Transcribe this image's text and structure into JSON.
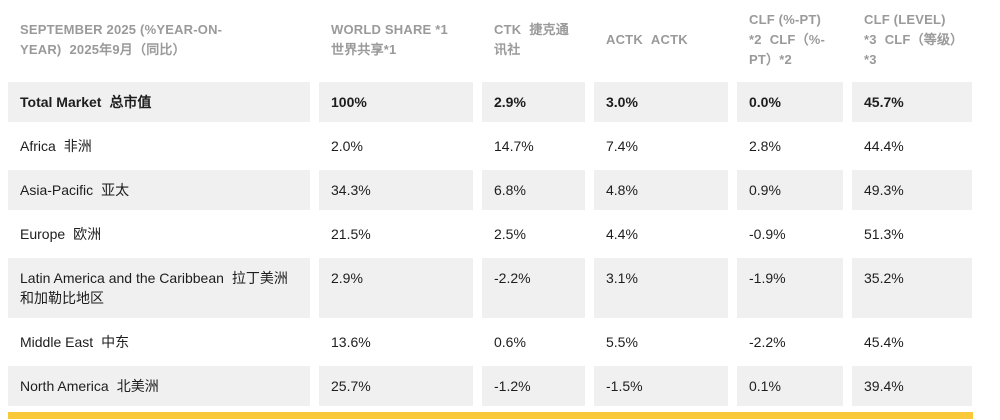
{
  "theme": {
    "accent_bar_color": "#F9C93A",
    "shaded_row_bg": "#F0F0F0",
    "header_text_color": "#9A9A9A",
    "body_text_color": "#1D1D1D"
  },
  "table": {
    "columns": [
      {
        "en": "SEPTEMBER 2025 (%YEAR-ON-YEAR)",
        "zh": "2025年9月（同比）"
      },
      {
        "en": "WORLD SHARE *1",
        "zh": "世界共享*1"
      },
      {
        "en": "CTK",
        "zh": "捷克通讯社"
      },
      {
        "en": "ACTK",
        "zh": "ACTK"
      },
      {
        "en": "CLF (%-PT) *2",
        "zh": "CLF（%-PT）*2"
      },
      {
        "en": "CLF (LEVEL) *3",
        "zh": "CLF（等级）*3"
      }
    ],
    "rows": [
      {
        "region_en": "Total Market",
        "region_zh": "总市值",
        "values": [
          "100%",
          "2.9%",
          "3.0%",
          "0.0%",
          "45.7%"
        ],
        "bold": true
      },
      {
        "region_en": "Africa",
        "region_zh": "非洲",
        "values": [
          "2.0%",
          "14.7%",
          "7.4%",
          "2.8%",
          "44.4%"
        ],
        "bold": false
      },
      {
        "region_en": "Asia-Pacific",
        "region_zh": "亚太",
        "values": [
          "34.3%",
          "6.8%",
          "4.8%",
          "0.9%",
          "49.3%"
        ],
        "bold": false
      },
      {
        "region_en": "Europe",
        "region_zh": "欧洲",
        "values": [
          "21.5%",
          "2.5%",
          "4.4%",
          "-0.9%",
          "51.3%"
        ],
        "bold": false
      },
      {
        "region_en": "Latin America and the Caribbean",
        "region_zh": "拉丁美洲和加勒比地区",
        "values": [
          "2.9%",
          "-2.2%",
          "3.1%",
          "-1.9%",
          "35.2%"
        ],
        "bold": false
      },
      {
        "region_en": "Middle East",
        "region_zh": "中东",
        "values": [
          "13.6%",
          "0.6%",
          "5.5%",
          "-2.2%",
          "45.4%"
        ],
        "bold": false
      },
      {
        "region_en": "North America",
        "region_zh": "北美洲",
        "values": [
          "25.7%",
          "-1.2%",
          "-1.5%",
          "0.1%",
          "39.4%"
        ],
        "bold": false
      }
    ]
  },
  "chart_data": {
    "type": "table",
    "title": "SEPTEMBER 2025 (%YEAR-ON-YEAR) 2025年9月（同比）",
    "columns": [
      "SEPTEMBER 2025 (%YEAR-ON-YEAR) 2025年9月（同比）",
      "WORLD SHARE *1 世界共享*1",
      "CTK 捷克通讯社",
      "ACTK ACTK",
      "CLF (%-PT) *2 CLF（%-PT）*2",
      "CLF (LEVEL) *3 CLF（等级）*3"
    ],
    "rows": [
      [
        "Total Market 总市值",
        "100%",
        "2.9%",
        "3.0%",
        "0.0%",
        "45.7%"
      ],
      [
        "Africa 非洲",
        "2.0%",
        "14.7%",
        "7.4%",
        "2.8%",
        "44.4%"
      ],
      [
        "Asia-Pacific 亚太",
        "34.3%",
        "6.8%",
        "4.8%",
        "0.9%",
        "49.3%"
      ],
      [
        "Europe 欧洲",
        "21.5%",
        "2.5%",
        "4.4%",
        "-0.9%",
        "51.3%"
      ],
      [
        "Latin America and the Caribbean 拉丁美洲和加勒比地区",
        "2.9%",
        "-2.2%",
        "3.1%",
        "-1.9%",
        "35.2%"
      ],
      [
        "Middle East 中东",
        "13.6%",
        "0.6%",
        "5.5%",
        "-2.2%",
        "45.4%"
      ],
      [
        "North America 北美洲",
        "25.7%",
        "-1.2%",
        "-1.5%",
        "0.1%",
        "39.4%"
      ]
    ],
    "layout": {
      "shaded_rows": "alternating starting with first data row",
      "accent_bar": "yellow bar under table"
    }
  }
}
